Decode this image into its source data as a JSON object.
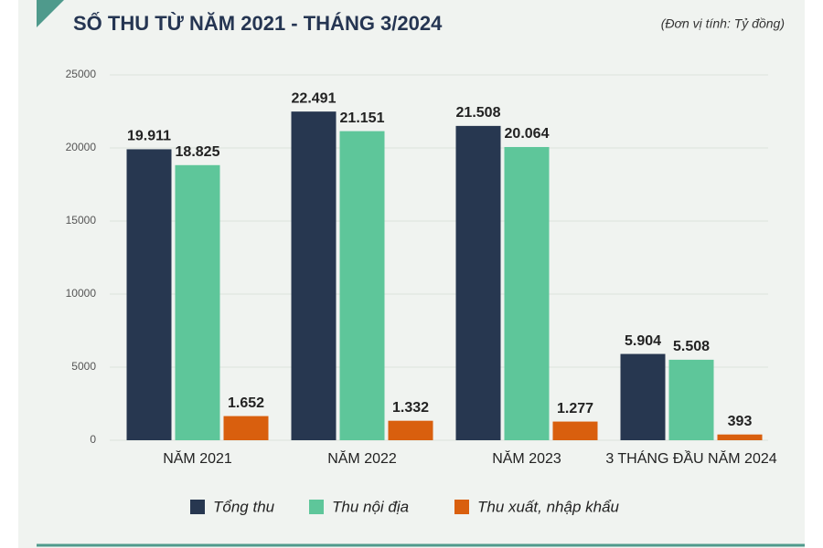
{
  "chart_data": {
    "type": "bar",
    "title": "SỐ THU TỪ NĂM 2021 - THÁNG 3/2024",
    "subtitle": "(Đơn vị tính: Tỷ đồng)",
    "categories": [
      "NĂM 2021",
      "NĂM 2022",
      "NĂM 2023",
      "3 THÁNG ĐẦU NĂM 2024"
    ],
    "series": [
      {
        "name": "Tổng thu",
        "color": "#273750",
        "values": [
          19911,
          22491,
          21508,
          5904
        ],
        "value_labels": [
          "19.911",
          "22.491",
          "21.508",
          "5.904"
        ]
      },
      {
        "name": "Thu nội địa",
        "color": "#5ec69a",
        "values": [
          18825,
          21151,
          20064,
          5508
        ],
        "value_labels": [
          "18.825",
          "21.151",
          "20.064",
          "5.508"
        ]
      },
      {
        "name": "Thu xuất, nhập khẩu",
        "color": "#d95f0e",
        "values": [
          1652,
          1332,
          1277,
          393
        ],
        "value_labels": [
          "1.652",
          "1.332",
          "1.277",
          "393"
        ]
      }
    ],
    "ylim": [
      0,
      25000
    ],
    "yticks": [
      0,
      5000,
      10000,
      15000,
      20000,
      25000
    ],
    "grid": true
  }
}
